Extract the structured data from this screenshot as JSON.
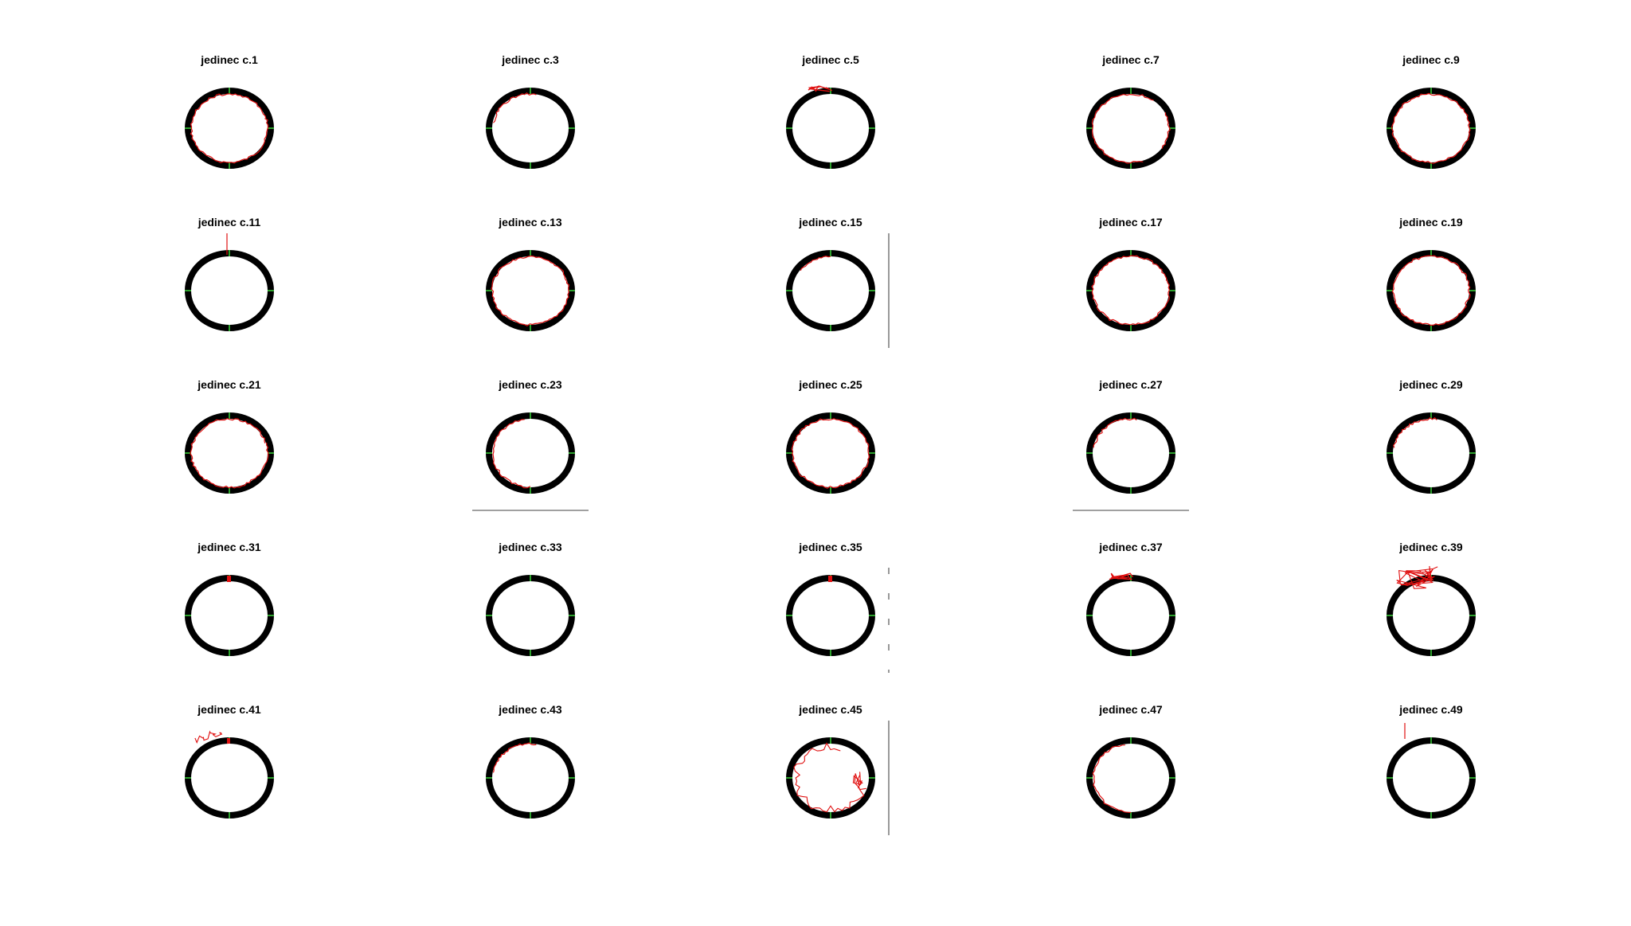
{
  "figure": {
    "background": "#ffffff",
    "ring_color": "#000000",
    "marker_color": "#2ca02c",
    "trajectory_color": "#e01010",
    "layout_rows": 5,
    "layout_cols": 5
  },
  "chart_data": {
    "type": "scatter",
    "description_visible": false,
    "panels": [
      {
        "title": "jedinec c.1",
        "trajectory": "wall-full-circle"
      },
      {
        "title": "jedinec c.3",
        "trajectory": "wall-upper-left"
      },
      {
        "title": "jedinec c.5",
        "trajectory": "wall-top-cluster"
      },
      {
        "title": "jedinec c.7",
        "trajectory": "wall-left-right"
      },
      {
        "title": "jedinec c.9",
        "trajectory": "wall-full-circle"
      },
      {
        "title": "jedinec c.11",
        "trajectory": "top-line"
      },
      {
        "title": "jedinec c.13",
        "trajectory": "wall-full-circle"
      },
      {
        "title": "jedinec c.15",
        "trajectory": "wall-top",
        "side_line": "vertical"
      },
      {
        "title": "jedinec c.17",
        "trajectory": "wall-full-circle"
      },
      {
        "title": "jedinec c.19",
        "trajectory": "wall-full-circle"
      },
      {
        "title": "jedinec c.21",
        "trajectory": "wall-full-circle"
      },
      {
        "title": "jedinec c.23",
        "trajectory": "wall-left",
        "side_line": "horizontal"
      },
      {
        "title": "jedinec c.25",
        "trajectory": "wall-full-circle"
      },
      {
        "title": "jedinec c.27",
        "trajectory": "wall-upper-left",
        "side_line": "horizontal"
      },
      {
        "title": "jedinec c.29",
        "trajectory": "wall-upper-left"
      },
      {
        "title": "jedinec c.31",
        "trajectory": "top-dot"
      },
      {
        "title": "jedinec c.33",
        "trajectory": "none"
      },
      {
        "title": "jedinec c.35",
        "trajectory": "top-dot",
        "side_line": "dashed"
      },
      {
        "title": "jedinec c.37",
        "trajectory": "wall-top-cluster"
      },
      {
        "title": "jedinec c.39",
        "trajectory": "outside-upper-left"
      },
      {
        "title": "jedinec c.41",
        "trajectory": "outside-left"
      },
      {
        "title": "jedinec c.43",
        "trajectory": "wall-upper-left"
      },
      {
        "title": "jedinec c.45",
        "trajectory": "inside-wander",
        "side_line": "vertical"
      },
      {
        "title": "jedinec c.47",
        "trajectory": "wall-left"
      },
      {
        "title": "jedinec c.49",
        "trajectory": "top-line-left"
      }
    ]
  }
}
